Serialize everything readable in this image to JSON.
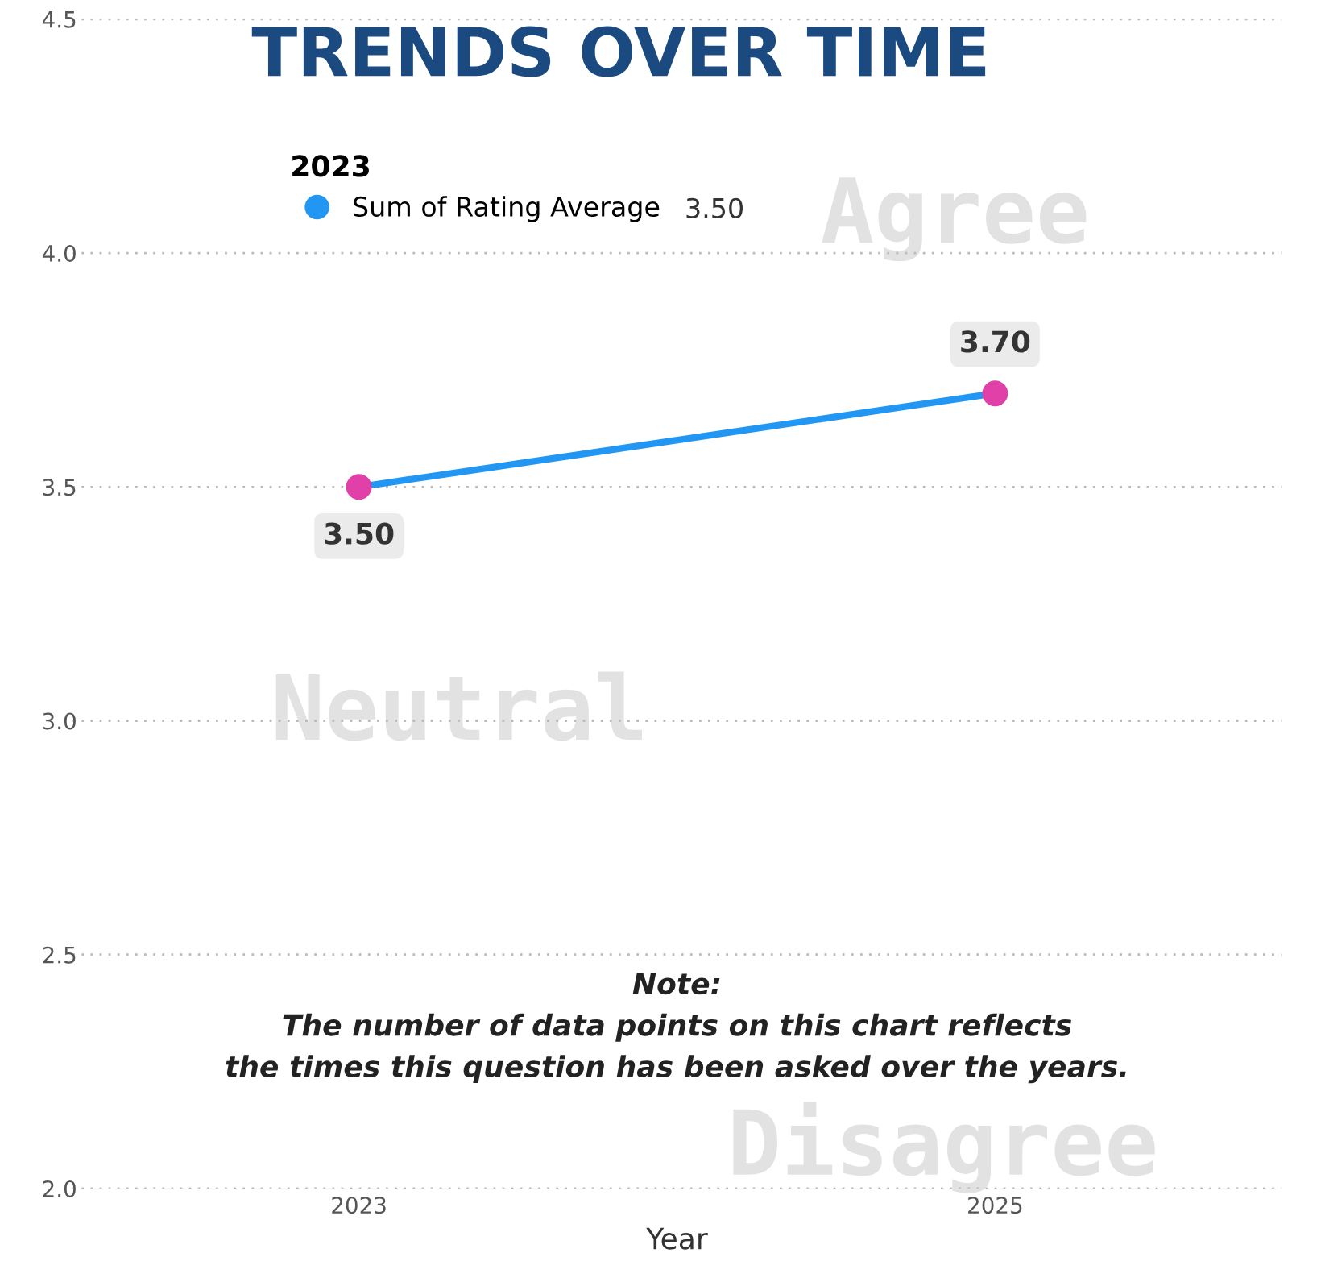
{
  "chart_data": {
    "type": "line",
    "title": "TRENDS OVER TIME",
    "xlabel": "Year",
    "categories": [
      "2023",
      "2025"
    ],
    "series": [
      {
        "name": "Sum of Rating Average",
        "color": "#2196f3",
        "colors": [
          "#e040a8",
          "#e040a8"
        ],
        "values": [
          3.5,
          3.7
        ],
        "value_labels": [
          "3.50",
          "3.70"
        ]
      }
    ],
    "ylim": [
      2.0,
      4.5
    ],
    "yticks": [
      {
        "value": 2.0,
        "label": "2.0"
      },
      {
        "value": 2.5,
        "label": "2.5"
      },
      {
        "value": 3.0,
        "label": "3.0"
      },
      {
        "value": 3.5,
        "label": "3.5"
      },
      {
        "value": 4.0,
        "label": "4.0"
      },
      {
        "value": 4.5,
        "label": "4.5"
      }
    ],
    "grid": "y",
    "marker": "circle",
    "line_style": "solid",
    "legend": "top left",
    "legend_title": "2023",
    "annotations": [
      "3.50",
      "Agree",
      "Neutral",
      "Disagree",
      "Note:\nThe number of data points on this chart reflects\nthe times this question has been asked over the years."
    ]
  }
}
